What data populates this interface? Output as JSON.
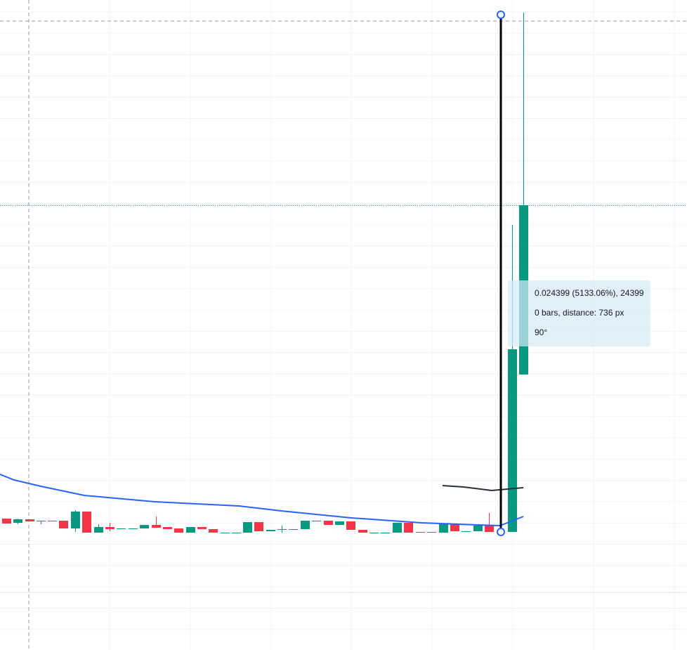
{
  "tooltip": {
    "lines": [
      "0.024399 (5133.06%), 24399",
      "0 bars, distance: 736 px",
      "90°"
    ]
  }
}
